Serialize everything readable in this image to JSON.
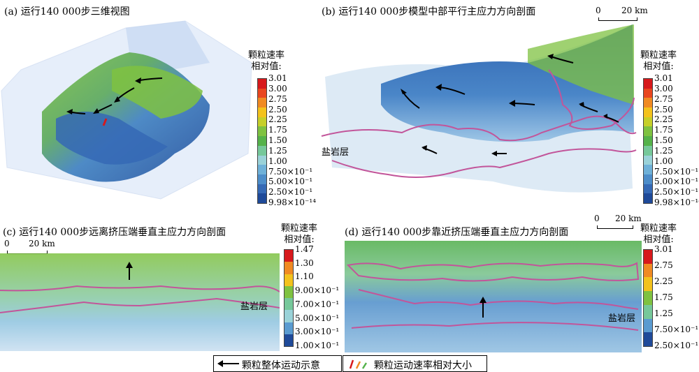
{
  "panels": {
    "a": {
      "title": "(a) 运行140 000步三维视图"
    },
    "b": {
      "title": "(b) 运行140 000步模型中部平行主应力方向剖面",
      "salt": "盐岩层"
    },
    "c": {
      "title": "(c) 运行140 000步远离挤压端垂直主应力方向剖面",
      "salt": "盐岩层"
    },
    "d": {
      "title": "(d) 运行140 000步靠近挤压端垂直主应力方向剖面",
      "salt": "盐岩层"
    }
  },
  "scale": {
    "zero": "0",
    "label": "20 km"
  },
  "colorbar_title": [
    "颗粒速率",
    "相对值:"
  ],
  "colorbar_ab": {
    "ticks": [
      "3.01",
      "3.00",
      "2.75",
      "2.50",
      "2.25",
      "1.75",
      "1.50",
      "1.25",
      "1.00",
      "7.50×10⁻¹",
      "5.00×10⁻¹",
      "2.50×10⁻¹",
      "9.98×10⁻¹⁴"
    ],
    "colors": [
      "#d7191c",
      "#e9461f",
      "#f08a23",
      "#f3c21d",
      "#c6cf2a",
      "#7fc241",
      "#55b24a",
      "#76c89a",
      "#9ad2d8",
      "#6fb1d8",
      "#4d8dc9",
      "#3569b5",
      "#1f4a99"
    ]
  },
  "colorbar_c": {
    "ticks": [
      "1.47",
      "1.30",
      "1.10",
      "9.00×10⁻¹",
      "7.00×10⁻¹",
      "5.00×10⁻¹",
      "3.00×10⁻¹",
      "1.00×10⁻¹"
    ],
    "colors": [
      "#d7191c",
      "#f08a23",
      "#f3c21d",
      "#7fc241",
      "#76c89a",
      "#9ad2d8",
      "#5a9bd0",
      "#1f4a99"
    ]
  },
  "colorbar_d": {
    "ticks": [
      "3.01",
      "2.75",
      "2.25",
      "1.75",
      "1.25",
      "7.50×10⁻¹",
      "2.50×10⁻¹"
    ],
    "colors": [
      "#d7191c",
      "#f08a23",
      "#f3c21d",
      "#7fc241",
      "#76c89a",
      "#5a9bd0",
      "#1f4a99"
    ]
  },
  "legend": {
    "arrow": "颗粒整体运动示意",
    "rate": "颗粒运动速率相对大小"
  }
}
